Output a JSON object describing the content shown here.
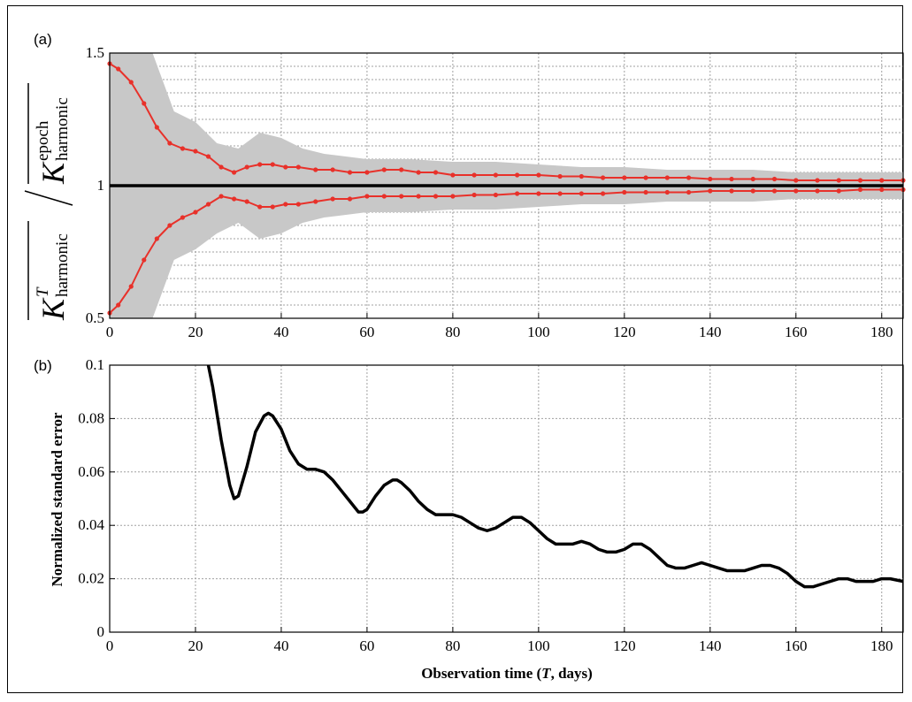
{
  "chart_data": [
    {
      "type": "line",
      "panel_label": "(a)",
      "ylabel_num_base": "K",
      "ylabel_num_sup": "T",
      "ylabel_num_sub": "harmonic",
      "ylabel_den_base": "K",
      "ylabel_den_sup": "epoch",
      "ylabel_den_sub": "harmonic",
      "xlim": [
        0,
        185
      ],
      "ylim": [
        0.5,
        1.5
      ],
      "xticks": [
        0,
        20,
        40,
        60,
        80,
        100,
        120,
        140,
        160,
        180
      ],
      "yticks": [
        {
          "value": 0.5,
          "label": "0.5"
        },
        {
          "value": 1.0,
          "label": "1"
        },
        {
          "value": 1.5,
          "label": "1.5"
        }
      ],
      "grid": true,
      "reference_line": 1.0,
      "series": [
        {
          "role": "upper-bound",
          "color": "#e8312a",
          "x": [
            0,
            2,
            5,
            8,
            11,
            14,
            17,
            20,
            23,
            26,
            29,
            32,
            35,
            38,
            41,
            44,
            48,
            52,
            56,
            60,
            64,
            68,
            72,
            76,
            80,
            85,
            90,
            95,
            100,
            105,
            110,
            115,
            120,
            125,
            130,
            135,
            140,
            145,
            150,
            155,
            160,
            165,
            170,
            175,
            180,
            185
          ],
          "y": [
            1.46,
            1.44,
            1.39,
            1.31,
            1.22,
            1.16,
            1.14,
            1.13,
            1.11,
            1.07,
            1.05,
            1.07,
            1.08,
            1.08,
            1.07,
            1.07,
            1.06,
            1.06,
            1.05,
            1.05,
            1.06,
            1.06,
            1.05,
            1.05,
            1.04,
            1.04,
            1.04,
            1.04,
            1.04,
            1.035,
            1.035,
            1.03,
            1.03,
            1.03,
            1.03,
            1.03,
            1.025,
            1.025,
            1.025,
            1.025,
            1.02,
            1.02,
            1.02,
            1.02,
            1.02,
            1.02
          ]
        },
        {
          "role": "lower-bound",
          "color": "#e8312a",
          "x": [
            0,
            2,
            5,
            8,
            11,
            14,
            17,
            20,
            23,
            26,
            29,
            32,
            35,
            38,
            41,
            44,
            48,
            52,
            56,
            60,
            64,
            68,
            72,
            76,
            80,
            85,
            90,
            95,
            100,
            105,
            110,
            115,
            120,
            125,
            130,
            135,
            140,
            145,
            150,
            155,
            160,
            165,
            170,
            175,
            180,
            185
          ],
          "y": [
            0.52,
            0.55,
            0.62,
            0.72,
            0.8,
            0.85,
            0.88,
            0.9,
            0.93,
            0.96,
            0.95,
            0.94,
            0.92,
            0.92,
            0.93,
            0.93,
            0.94,
            0.95,
            0.95,
            0.96,
            0.96,
            0.96,
            0.96,
            0.96,
            0.96,
            0.965,
            0.965,
            0.97,
            0.97,
            0.97,
            0.97,
            0.97,
            0.975,
            0.975,
            0.975,
            0.975,
            0.98,
            0.98,
            0.98,
            0.98,
            0.98,
            0.98,
            0.98,
            0.985,
            0.985,
            0.985
          ]
        }
      ],
      "band": {
        "color": "#c8c8c8",
        "x": [
          0,
          5,
          10,
          15,
          20,
          25,
          30,
          35,
          40,
          45,
          50,
          60,
          70,
          80,
          90,
          100,
          110,
          120,
          130,
          140,
          150,
          160,
          170,
          180,
          185
        ],
        "upper": [
          1.5,
          1.5,
          1.5,
          1.28,
          1.24,
          1.16,
          1.14,
          1.2,
          1.18,
          1.14,
          1.12,
          1.1,
          1.1,
          1.09,
          1.09,
          1.08,
          1.07,
          1.07,
          1.06,
          1.06,
          1.06,
          1.05,
          1.05,
          1.05,
          1.05
        ],
        "lower": [
          0.5,
          0.5,
          0.5,
          0.72,
          0.76,
          0.82,
          0.86,
          0.8,
          0.82,
          0.86,
          0.88,
          0.9,
          0.9,
          0.91,
          0.91,
          0.92,
          0.93,
          0.93,
          0.94,
          0.94,
          0.94,
          0.95,
          0.95,
          0.95,
          0.95
        ]
      }
    },
    {
      "type": "line",
      "panel_label": "(b)",
      "xlabel": "Observation time (",
      "xlabel_var": "T",
      "xlabel_tail": ", days)",
      "ylabel": "Normalized standard error",
      "xlim": [
        0,
        185
      ],
      "ylim": [
        0,
        0.1
      ],
      "xticks": [
        0,
        20,
        40,
        60,
        80,
        100,
        120,
        140,
        160,
        180
      ],
      "yticks": [
        {
          "value": 0,
          "label": "0"
        },
        {
          "value": 0.02,
          "label": "0.02"
        },
        {
          "value": 0.04,
          "label": "0.04"
        },
        {
          "value": 0.06,
          "label": "0.06"
        },
        {
          "value": 0.08,
          "label": "0.08"
        },
        {
          "value": 0.1,
          "label": "0.1"
        }
      ],
      "grid": true,
      "series": [
        {
          "color": "#000000",
          "x": [
            23,
            24,
            26,
            28,
            29,
            30,
            32,
            34,
            36,
            37,
            38,
            40,
            42,
            44,
            46,
            48,
            50,
            52,
            54,
            56,
            58,
            59,
            60,
            62,
            64,
            66,
            67,
            68,
            70,
            72,
            74,
            76,
            78,
            80,
            82,
            84,
            86,
            88,
            90,
            92,
            94,
            96,
            98,
            100,
            102,
            104,
            106,
            108,
            110,
            112,
            114,
            116,
            118,
            120,
            122,
            124,
            126,
            128,
            130,
            132,
            134,
            136,
            138,
            140,
            142,
            144,
            146,
            148,
            150,
            152,
            154,
            156,
            158,
            160,
            162,
            164,
            166,
            168,
            170,
            172,
            174,
            176,
            178,
            180,
            182,
            185
          ],
          "y": [
            0.1,
            0.092,
            0.072,
            0.055,
            0.05,
            0.051,
            0.062,
            0.075,
            0.081,
            0.082,
            0.081,
            0.076,
            0.068,
            0.063,
            0.061,
            0.061,
            0.06,
            0.057,
            0.053,
            0.049,
            0.045,
            0.045,
            0.046,
            0.051,
            0.055,
            0.057,
            0.057,
            0.056,
            0.053,
            0.049,
            0.046,
            0.044,
            0.044,
            0.044,
            0.043,
            0.041,
            0.039,
            0.038,
            0.039,
            0.041,
            0.043,
            0.043,
            0.041,
            0.038,
            0.035,
            0.033,
            0.033,
            0.033,
            0.034,
            0.033,
            0.031,
            0.03,
            0.03,
            0.031,
            0.033,
            0.033,
            0.031,
            0.028,
            0.025,
            0.024,
            0.024,
            0.025,
            0.026,
            0.025,
            0.024,
            0.023,
            0.023,
            0.023,
            0.024,
            0.025,
            0.025,
            0.024,
            0.022,
            0.019,
            0.017,
            0.017,
            0.018,
            0.019,
            0.02,
            0.02,
            0.019,
            0.019,
            0.019,
            0.02,
            0.02,
            0.019
          ]
        }
      ]
    }
  ]
}
